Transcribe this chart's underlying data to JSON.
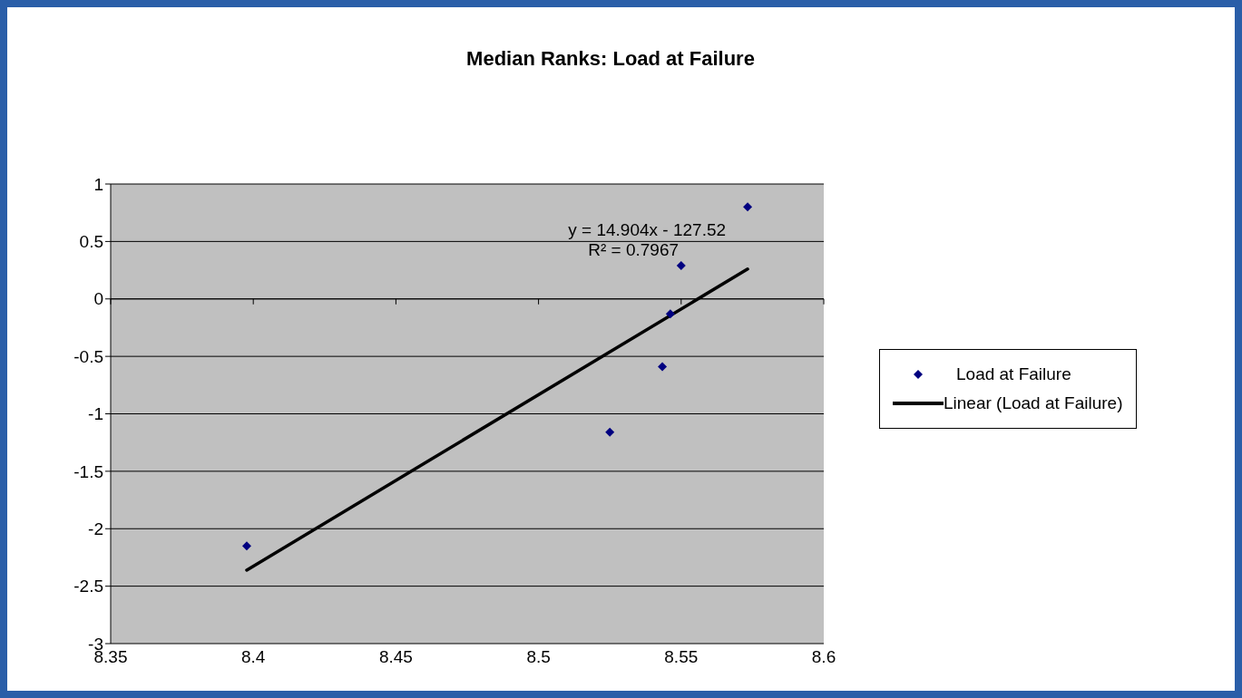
{
  "chart_data": {
    "type": "scatter",
    "title": "Median Ranks: Load at Failure",
    "series": [
      {
        "name": "Load at Failure",
        "type": "scatter",
        "color": "#000080",
        "marker": "diamond",
        "x": [
          8.3977,
          8.525,
          8.5434,
          8.5462,
          8.55,
          8.5733
        ],
        "values": [
          -2.15,
          -1.16,
          -0.59,
          -0.13,
          0.29,
          0.8
        ]
      },
      {
        "name": "Linear (Load at Failure)",
        "type": "line",
        "color": "#000000",
        "marker": "none",
        "line_style": "solid",
        "x": [
          8.3977,
          8.5733
        ],
        "values": [
          -2.36,
          0.26
        ]
      }
    ],
    "annotations": [
      "y = 14.904x - 127.52",
      "R² = 0.7967"
    ],
    "xlim": [
      8.35,
      8.6
    ],
    "xticks": [
      8.35,
      8.4,
      8.45,
      8.5,
      8.55,
      8.6
    ],
    "ylim": [
      -3,
      1
    ],
    "yticks": [
      -3,
      -2.5,
      -2,
      -1.5,
      -1,
      -0.5,
      0,
      0.5,
      1
    ],
    "grid": "y",
    "legend": "right"
  }
}
